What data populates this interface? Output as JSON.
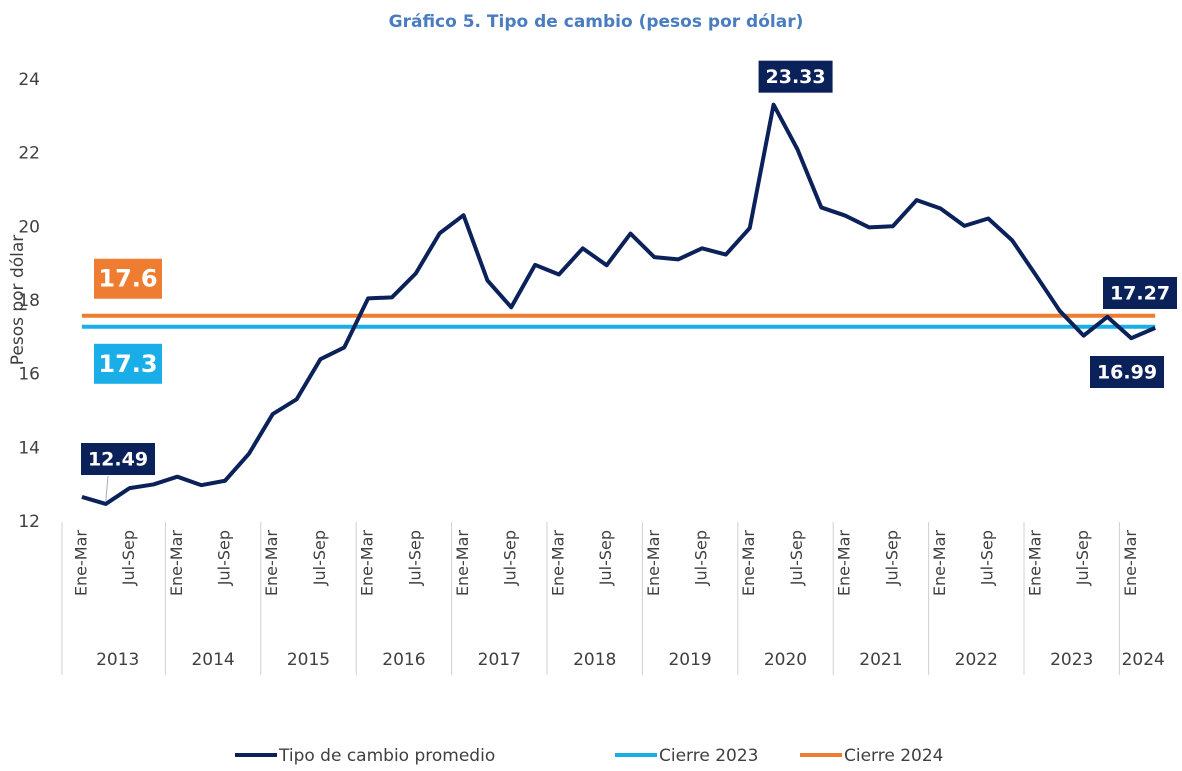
{
  "chart_data": {
    "type": "line",
    "title": "Gráfico 5. Tipo de cambio (pesos por dólar)",
    "y_label": "Pesos por dólar",
    "categories": [
      "Ene-Mar",
      null,
      "Jul-Sep",
      null,
      "Ene-Mar",
      null,
      "Jul-Sep",
      null,
      "Ene-Mar",
      null,
      "Jul-Sep",
      null,
      "Ene-Mar",
      null,
      "Jul-Sep",
      null,
      "Ene-Mar",
      null,
      "Jul-Sep",
      null,
      "Ene-Mar",
      null,
      "Jul-Sep",
      null,
      "Ene-Mar",
      null,
      "Jul-Sep",
      null,
      "Ene-Mar",
      null,
      "Jul-Sep",
      null,
      "Ene-Mar",
      null,
      "Jul-Sep",
      null,
      "Ene-Mar",
      null,
      "Jul-Sep",
      null,
      "Ene-Mar",
      null,
      "Jul-Sep",
      null,
      "Ene-Mar",
      null
    ],
    "x_groups": [
      {
        "label": "2013",
        "count": 4
      },
      {
        "label": "2014",
        "count": 4
      },
      {
        "label": "2015",
        "count": 4
      },
      {
        "label": "2016",
        "count": 4
      },
      {
        "label": "2017",
        "count": 4
      },
      {
        "label": "2018",
        "count": 4
      },
      {
        "label": "2019",
        "count": 4
      },
      {
        "label": "2020",
        "count": 4
      },
      {
        "label": "2021",
        "count": 4
      },
      {
        "label": "2022",
        "count": 4
      },
      {
        "label": "2023",
        "count": 4
      },
      {
        "label": "2024",
        "count": 2
      }
    ],
    "series": [
      {
        "name": "Tipo de cambio promedio",
        "color": "#0b2159",
        "values": [
          12.68,
          12.49,
          12.92,
          13.02,
          13.23,
          13.0,
          13.12,
          13.85,
          14.93,
          15.33,
          16.42,
          16.74,
          18.07,
          18.1,
          18.75,
          19.84,
          20.33,
          18.56,
          17.83,
          18.98,
          18.72,
          19.43,
          18.97,
          19.83,
          19.19,
          19.13,
          19.43,
          19.26,
          19.98,
          23.33,
          22.12,
          20.54,
          20.32,
          20.0,
          20.03,
          20.74,
          20.51,
          20.04,
          20.24,
          19.65,
          18.7,
          17.73,
          17.06,
          17.57,
          16.99,
          17.27
        ],
        "labeled_points": [
          1,
          29,
          44,
          45
        ]
      }
    ],
    "reference_lines": [
      {
        "name": "Cierre 2023",
        "color": "#19aee8",
        "value": 17.3
      },
      {
        "name": "Cierre 2024",
        "color": "#ee7d31",
        "value": 17.6
      }
    ],
    "ylim": [
      12,
      24
    ],
    "yticks": [
      12,
      14,
      16,
      18,
      20,
      22,
      24
    ],
    "grid": false
  }
}
